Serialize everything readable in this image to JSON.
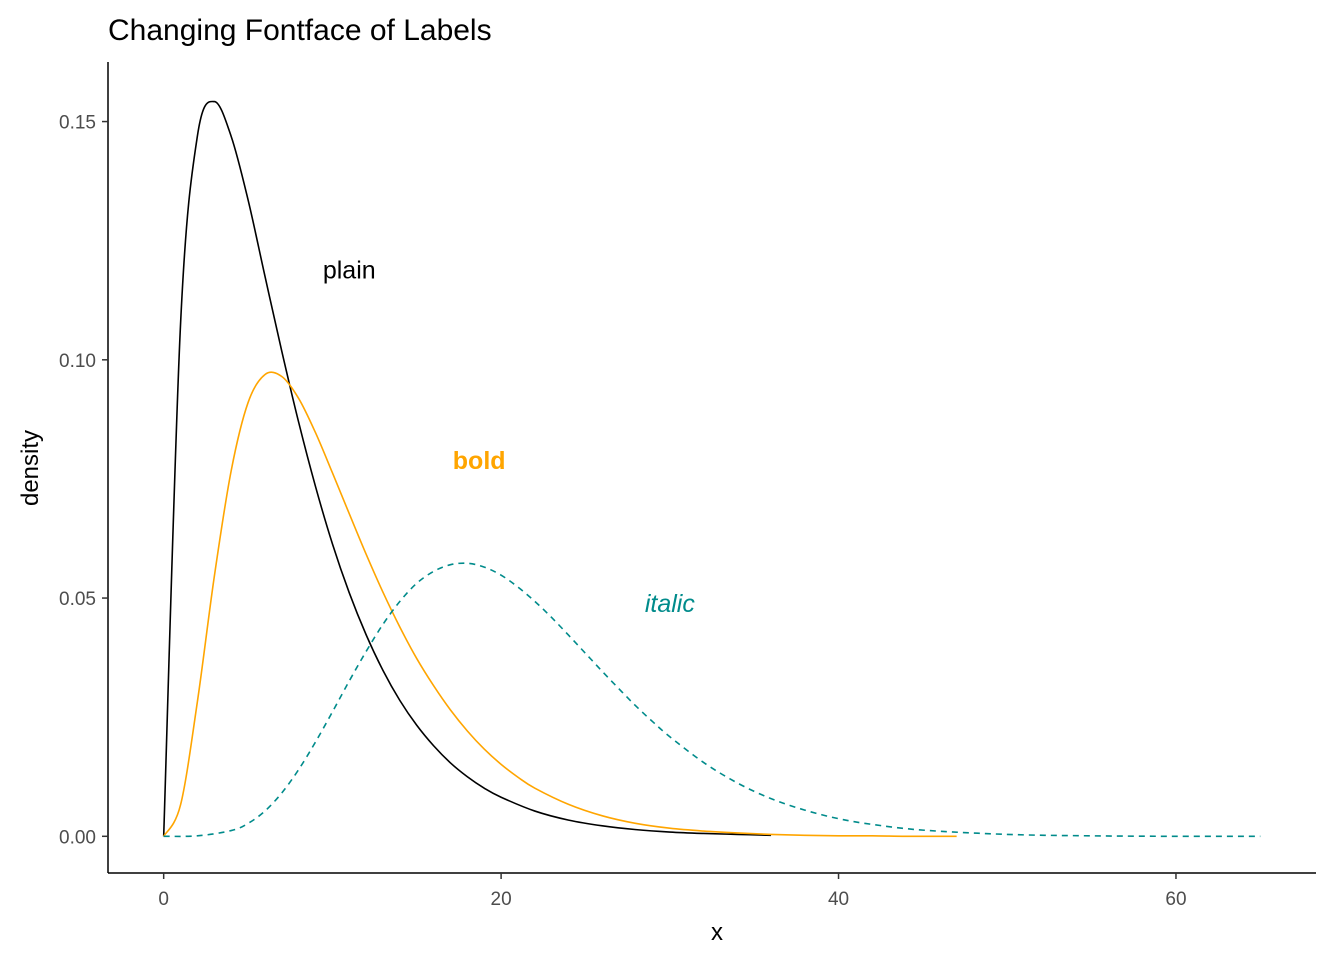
{
  "chart_data": {
    "type": "line",
    "title": "Changing Fontface of Labels",
    "xlabel": "x",
    "ylabel": "density",
    "xlim": [
      -3.3,
      68.3
    ],
    "ylim": [
      -0.0077,
      0.1625
    ],
    "x_ticks": [
      0,
      20,
      40,
      60
    ],
    "x_tick_labels": [
      "0",
      "20",
      "40",
      "60"
    ],
    "y_ticks": [
      0.0,
      0.05,
      0.1,
      0.15
    ],
    "y_tick_labels": [
      "0.00",
      "0.05",
      "0.10",
      "0.15"
    ],
    "grid": false,
    "legend": "none",
    "series": [
      {
        "color": "#000000",
        "dash": "solid",
        "x": [
          0,
          1,
          2,
          3,
          4,
          5,
          6,
          7,
          8,
          9,
          10,
          11,
          12,
          13,
          14,
          15,
          16,
          17,
          18,
          19,
          20,
          22,
          24,
          26,
          28,
          30,
          32,
          34,
          36
        ],
        "y": [
          0.0,
          0.1075,
          0.147,
          0.1542,
          0.1469,
          0.1336,
          0.1176,
          0.1018,
          0.0869,
          0.0734,
          0.0614,
          0.0511,
          0.0423,
          0.0348,
          0.0285,
          0.0233,
          0.019,
          0.0154,
          0.0125,
          0.0101,
          0.0082,
          0.0053,
          0.0034,
          0.0022,
          0.0014,
          0.0009,
          0.0006,
          0.0004,
          0.0002
        ]
      },
      {
        "color": "#FFA500",
        "dash": "solid",
        "x": [
          0,
          1,
          2,
          3,
          4,
          5,
          6,
          7,
          8,
          9,
          10,
          11,
          12,
          13,
          14,
          15,
          16,
          17,
          18,
          19,
          20,
          21,
          22,
          24,
          26,
          28,
          30,
          32,
          34,
          36,
          38,
          40,
          42,
          44,
          47
        ],
        "y": [
          0.0,
          0.0066,
          0.0283,
          0.0545,
          0.0767,
          0.091,
          0.0969,
          0.0965,
          0.0919,
          0.0847,
          0.0763,
          0.0677,
          0.0592,
          0.0512,
          0.0439,
          0.0373,
          0.0316,
          0.0265,
          0.0221,
          0.0183,
          0.0151,
          0.0124,
          0.0101,
          0.0067,
          0.0043,
          0.0027,
          0.0017,
          0.0011,
          0.0007,
          0.0004,
          0.0002,
          0.0001,
          0.0001,
          0.0,
          0.0
        ]
      },
      {
        "color": "#008B8B",
        "dash": "dashed",
        "x": [
          0,
          2,
          4,
          5,
          6,
          7,
          8,
          9,
          10,
          11,
          12,
          13,
          14,
          15,
          16,
          17,
          18,
          19,
          20,
          21,
          22,
          23,
          24,
          25,
          26,
          27,
          28,
          29,
          30,
          32,
          34,
          36,
          38,
          40,
          42,
          45,
          50,
          55,
          60,
          65
        ],
        "y": [
          0.0,
          0.0001,
          0.0012,
          0.0027,
          0.0053,
          0.0091,
          0.014,
          0.0198,
          0.0261,
          0.0326,
          0.0388,
          0.0445,
          0.0493,
          0.0531,
          0.0556,
          0.057,
          0.0573,
          0.0565,
          0.0548,
          0.0523,
          0.0493,
          0.0459,
          0.0422,
          0.0384,
          0.0346,
          0.0309,
          0.0273,
          0.024,
          0.0209,
          0.0155,
          0.0112,
          0.0079,
          0.0055,
          0.0037,
          0.0025,
          0.0013,
          0.0004,
          0.0001,
          0.0,
          0.0
        ]
      }
    ],
    "annotations": [
      {
        "text": "plain",
        "x": 11,
        "y": 0.119,
        "color": "#000000",
        "fontface": "plain"
      },
      {
        "text": "bold",
        "x": 18.7,
        "y": 0.079,
        "color": "#FFA500",
        "fontface": "bold"
      },
      {
        "text": "italic",
        "x": 30,
        "y": 0.049,
        "color": "#008B8B",
        "fontface": "italic"
      }
    ]
  }
}
